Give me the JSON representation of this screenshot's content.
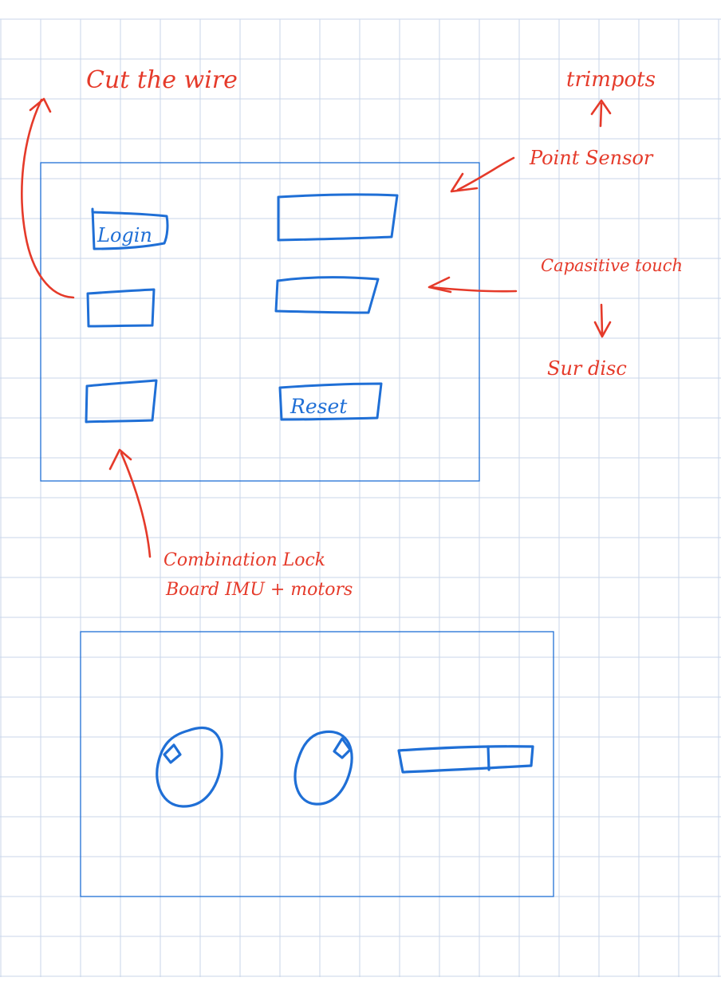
{
  "colors": {
    "grid": "#c9d6ea",
    "ink_blue": "#1f6fd6",
    "ink_red": "#e53a2a",
    "paper": "#ffffff"
  },
  "wireframe": {
    "buttons": {
      "login": "Login",
      "reset": "Reset"
    }
  },
  "annotations": {
    "cut_the_wire": "Cut the wire",
    "trimpots": "trimpots",
    "point_sensor": "Point Sensor",
    "capasitive_touch": "Capasitive touch",
    "sur_disc": "Sur disc",
    "combination_lock": "Combination Lock",
    "board_imu": "Board IMU + motors"
  },
  "icons": [
    "arrow-up-icon",
    "arrow-down-icon",
    "arrow-left-icon",
    "knob-icon",
    "slider-icon"
  ]
}
